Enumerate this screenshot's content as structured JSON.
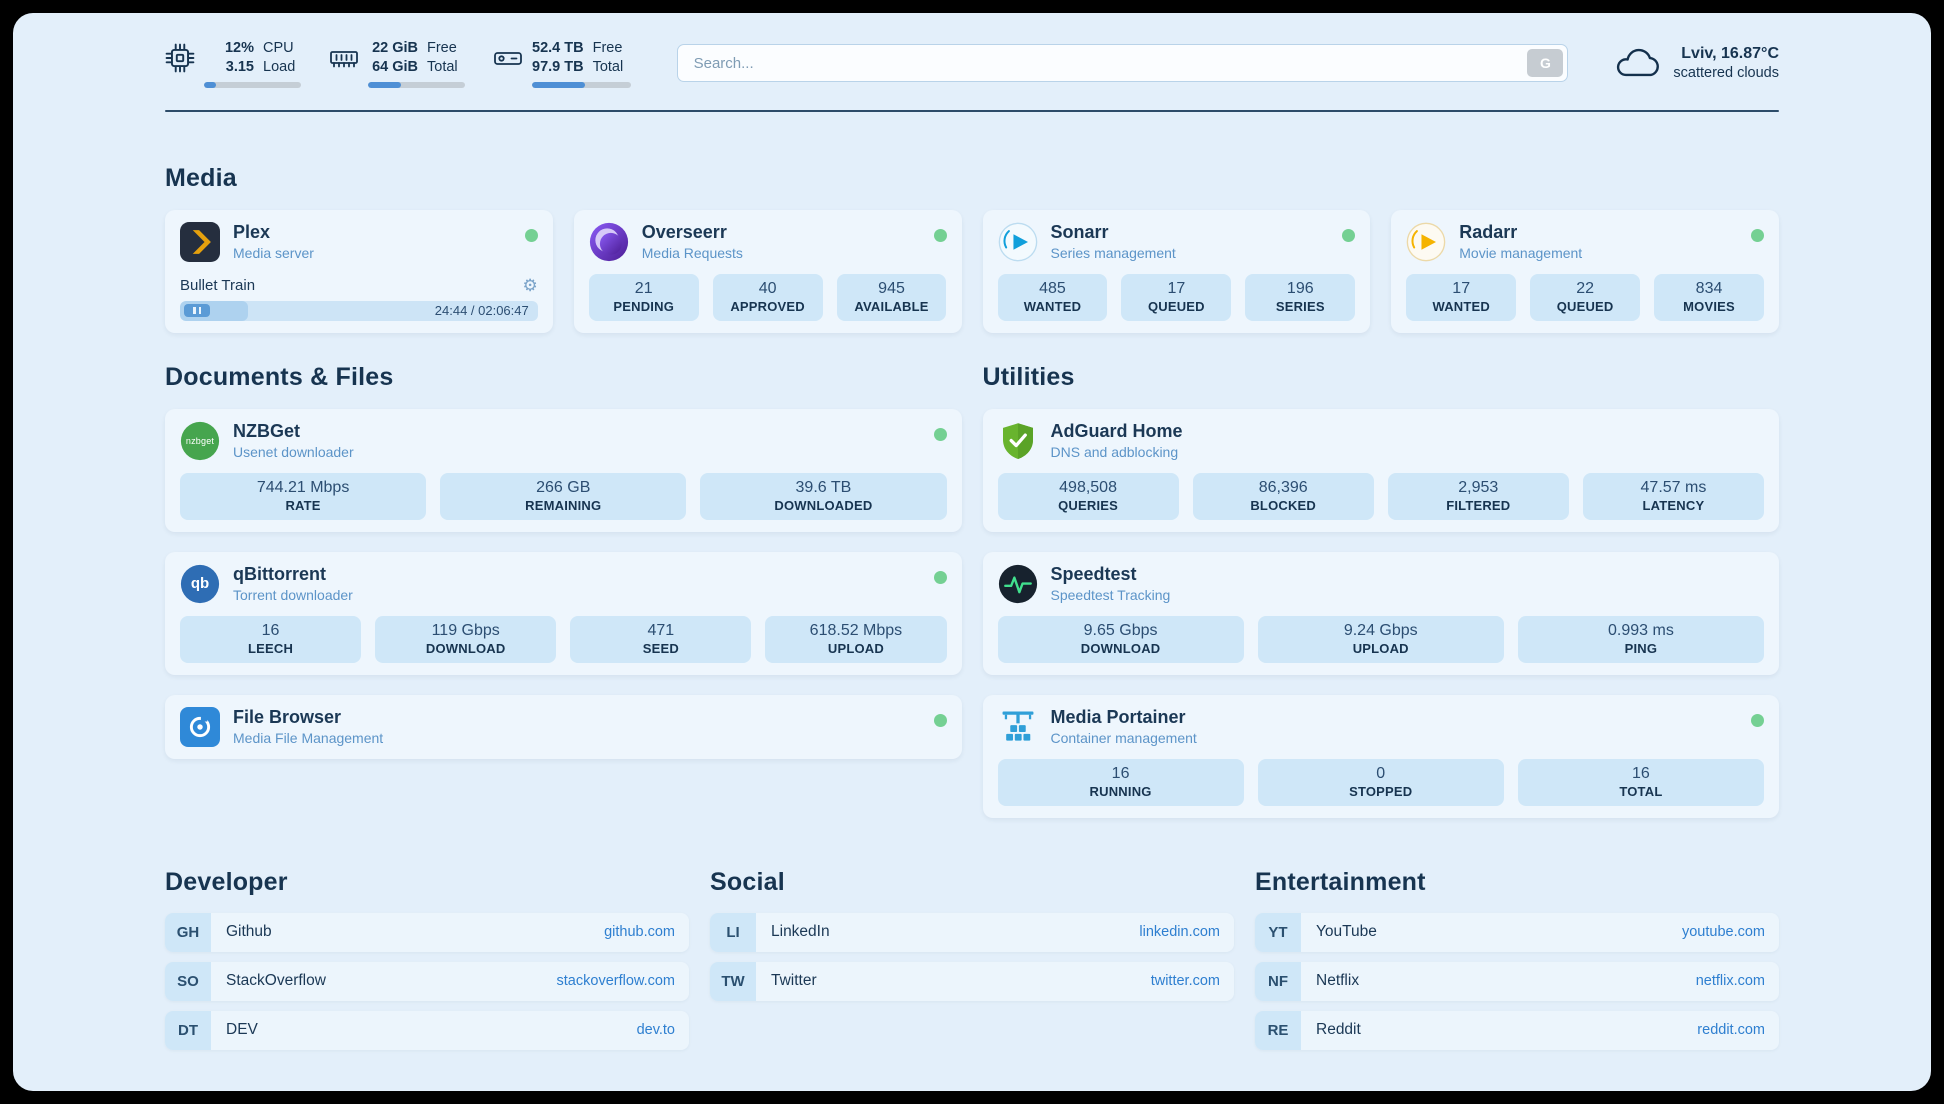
{
  "header": {
    "metrics": [
      {
        "name": "cpu",
        "line1": "12%",
        "line2": "3.15",
        "label1": "CPU",
        "label2": "Load",
        "progress": 12
      },
      {
        "name": "ram",
        "line1": "22 GiB",
        "line2": "64 GiB",
        "label1": "Free",
        "label2": "Total",
        "progress": 34
      },
      {
        "name": "disk",
        "line1": "52.4 TB",
        "line2": "97.9 TB",
        "label1": "Free",
        "label2": "Total",
        "progress": 54
      }
    ],
    "search": {
      "placeholder": "Search...",
      "button_label": "G"
    },
    "weather": {
      "location": "Lviv, 16.87°C",
      "condition": "scattered clouds"
    }
  },
  "sections": {
    "media": {
      "title": "Media",
      "plex": {
        "name": "Plex",
        "subtitle": "Media server",
        "status": "online",
        "now_playing": {
          "title": "Bullet Train",
          "time": "24:44 / 02:06:47",
          "progress": 19
        }
      },
      "overseerr": {
        "name": "Overseerr",
        "subtitle": "Media Requests",
        "status": "online",
        "stats": [
          {
            "value": "21",
            "label": "PENDING"
          },
          {
            "value": "40",
            "label": "APPROVED"
          },
          {
            "value": "945",
            "label": "AVAILABLE"
          }
        ]
      },
      "sonarr": {
        "name": "Sonarr",
        "subtitle": "Series management",
        "status": "online",
        "stats": [
          {
            "value": "485",
            "label": "WANTED"
          },
          {
            "value": "17",
            "label": "QUEUED"
          },
          {
            "value": "196",
            "label": "SERIES"
          }
        ]
      },
      "radarr": {
        "name": "Radarr",
        "subtitle": "Movie management",
        "status": "online",
        "stats": [
          {
            "value": "17",
            "label": "WANTED"
          },
          {
            "value": "22",
            "label": "QUEUED"
          },
          {
            "value": "834",
            "label": "MOVIES"
          }
        ]
      }
    },
    "documents": {
      "title": "Documents & Files",
      "nzbget": {
        "name": "NZBGet",
        "subtitle": "Usenet downloader",
        "status": "online",
        "stats": [
          {
            "value": "744.21 Mbps",
            "label": "RATE"
          },
          {
            "value": "266 GB",
            "label": "REMAINING"
          },
          {
            "value": "39.6 TB",
            "label": "DOWNLOADED"
          }
        ]
      },
      "qbittorrent": {
        "name": "qBittorrent",
        "subtitle": "Torrent downloader",
        "status": "online",
        "stats": [
          {
            "value": "16",
            "label": "LEECH"
          },
          {
            "value": "119 Gbps",
            "label": "DOWNLOAD"
          },
          {
            "value": "471",
            "label": "SEED"
          },
          {
            "value": "618.52 Mbps",
            "label": "UPLOAD"
          }
        ]
      },
      "filebrowser": {
        "name": "File Browser",
        "subtitle": "Media File Management",
        "status": "online"
      }
    },
    "utilities": {
      "title": "Utilities",
      "adguard": {
        "name": "AdGuard Home",
        "subtitle": "DNS and adblocking",
        "stats": [
          {
            "value": "498,508",
            "label": "QUERIES"
          },
          {
            "value": "86,396",
            "label": "BLOCKED"
          },
          {
            "value": "2,953",
            "label": "FILTERED"
          },
          {
            "value": "47.57 ms",
            "label": "LATENCY"
          }
        ]
      },
      "speedtest": {
        "name": "Speedtest",
        "subtitle": "Speedtest Tracking",
        "stats": [
          {
            "value": "9.65 Gbps",
            "label": "DOWNLOAD"
          },
          {
            "value": "9.24 Gbps",
            "label": "UPLOAD"
          },
          {
            "value": "0.993 ms",
            "label": "PING"
          }
        ]
      },
      "portainer": {
        "name": "Media Portainer",
        "subtitle": "Container management",
        "status": "online",
        "stats": [
          {
            "value": "16",
            "label": "RUNNING"
          },
          {
            "value": "0",
            "label": "STOPPED"
          },
          {
            "value": "16",
            "label": "TOTAL"
          }
        ]
      }
    },
    "bookmarks": [
      {
        "title": "Developer",
        "items": [
          {
            "abbr": "GH",
            "name": "Github",
            "url": "github.com"
          },
          {
            "abbr": "SO",
            "name": "StackOverflow",
            "url": "stackoverflow.com"
          },
          {
            "abbr": "DT",
            "name": "DEV",
            "url": "dev.to"
          }
        ]
      },
      {
        "title": "Social",
        "items": [
          {
            "abbr": "LI",
            "name": "LinkedIn",
            "url": "linkedin.com"
          },
          {
            "abbr": "TW",
            "name": "Twitter",
            "url": "twitter.com"
          }
        ]
      },
      {
        "title": "Entertainment",
        "items": [
          {
            "abbr": "YT",
            "name": "YouTube",
            "url": "youtube.com"
          },
          {
            "abbr": "NF",
            "name": "Netflix",
            "url": "netflix.com"
          },
          {
            "abbr": "RE",
            "name": "Reddit",
            "url": "reddit.com"
          }
        ]
      }
    ]
  },
  "icons": {
    "gear": "⚙",
    "nzbget_label": "nzbget",
    "qbittorrent_label": "qb"
  },
  "colors": {
    "page_background": "#e3effa",
    "card_background": "#eef6fd",
    "tile_background": "#cfe7f8",
    "ink": "#173450",
    "subtitle_blue": "#5c94c8",
    "link_blue": "#2e7fd0",
    "status_online_green": "#74d093",
    "progress_fill": "#4e8fd5",
    "plex_amber": "#e5a00d",
    "overseerr_purple": "#6d28d9",
    "sonarr_blue": "#109fdb",
    "radarr_amber": "#f5b300",
    "nzbget_green": "#46a54e",
    "qbittorrent_blue": "#2e6db4",
    "filebrowser_blue": "#2f89d8",
    "adguard_green": "#68b42e",
    "speedtest_dark": "#17222e",
    "portainer_blue": "#2f9fd8"
  }
}
